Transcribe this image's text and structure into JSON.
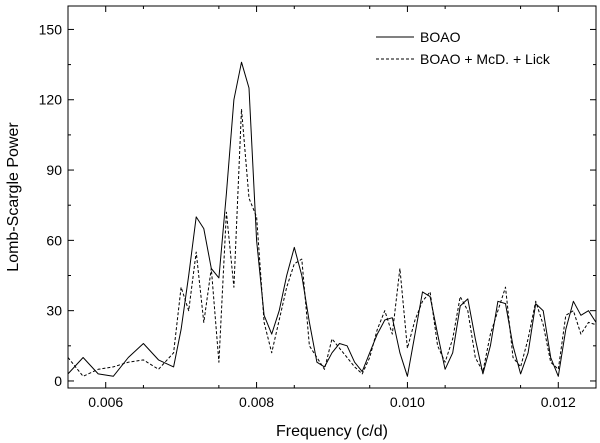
{
  "chart_data": {
    "type": "line",
    "xlabel": "Frequency (c/d)",
    "ylabel": "Lomb-Scargle Power",
    "xlim": [
      0.0055,
      0.0125
    ],
    "ylim": [
      -3,
      160
    ],
    "x_ticks": [
      0.006,
      0.008,
      0.01,
      0.012
    ],
    "x_tick_labels": [
      "0.006",
      "0.008",
      "0.010",
      "0.012"
    ],
    "y_ticks": [
      0,
      30,
      60,
      90,
      120,
      150
    ],
    "y_tick_labels": [
      "0",
      "30",
      "60",
      "90",
      "120",
      "150"
    ],
    "grid": false,
    "legend_position": "top-right",
    "series": [
      {
        "name": "BOAO",
        "style": "solid",
        "color": "#000000",
        "x": [
          0.0055,
          0.0057,
          0.0059,
          0.0061,
          0.0063,
          0.0065,
          0.0067,
          0.0069,
          0.007,
          0.0071,
          0.0072,
          0.0073,
          0.0074,
          0.0075,
          0.0076,
          0.0077,
          0.0078,
          0.0079,
          0.008,
          0.0081,
          0.0082,
          0.0083,
          0.0084,
          0.0085,
          0.0086,
          0.0087,
          0.0088,
          0.0089,
          0.009,
          0.0091,
          0.0092,
          0.0093,
          0.0094,
          0.0095,
          0.0096,
          0.0097,
          0.0098,
          0.0099,
          0.01,
          0.0101,
          0.0102,
          0.0103,
          0.0104,
          0.0105,
          0.0106,
          0.0107,
          0.0108,
          0.0109,
          0.011,
          0.0111,
          0.0112,
          0.0113,
          0.0114,
          0.0115,
          0.0116,
          0.0117,
          0.0118,
          0.0119,
          0.012,
          0.0121,
          0.0122,
          0.0123,
          0.0124,
          0.0125
        ],
        "values": [
          3,
          10,
          3,
          2,
          10,
          16,
          9,
          6,
          22,
          45,
          70,
          65,
          48,
          44,
          80,
          120,
          136,
          125,
          60,
          28,
          20,
          30,
          45,
          57,
          45,
          25,
          8,
          6,
          12,
          16,
          15,
          8,
          4,
          12,
          20,
          26,
          27,
          12,
          2,
          20,
          38,
          36,
          20,
          5,
          12,
          32,
          35,
          18,
          3,
          15,
          34,
          33,
          15,
          3,
          12,
          33,
          30,
          10,
          2,
          22,
          34,
          28,
          30,
          25
        ]
      },
      {
        "name": "BOAO + McD. + Lick",
        "style": "dashed",
        "color": "#000000",
        "x": [
          0.0055,
          0.0057,
          0.0059,
          0.0061,
          0.0063,
          0.0065,
          0.0067,
          0.0069,
          0.007,
          0.0071,
          0.0072,
          0.0073,
          0.0074,
          0.0075,
          0.0076,
          0.0077,
          0.0078,
          0.0079,
          0.008,
          0.0081,
          0.0082,
          0.0083,
          0.0084,
          0.0085,
          0.0086,
          0.0087,
          0.0088,
          0.0089,
          0.009,
          0.0091,
          0.0092,
          0.0093,
          0.0094,
          0.0095,
          0.0096,
          0.0097,
          0.0098,
          0.0099,
          0.01,
          0.0101,
          0.0102,
          0.0103,
          0.0104,
          0.0105,
          0.0106,
          0.0107,
          0.0108,
          0.0109,
          0.011,
          0.0111,
          0.0112,
          0.0113,
          0.0114,
          0.0115,
          0.0116,
          0.0117,
          0.0118,
          0.0119,
          0.012,
          0.0121,
          0.0122,
          0.0123,
          0.0124,
          0.0125
        ],
        "values": [
          10,
          2,
          5,
          6,
          8,
          9,
          5,
          12,
          40,
          30,
          55,
          25,
          48,
          8,
          72,
          40,
          116,
          78,
          70,
          25,
          12,
          26,
          40,
          50,
          52,
          15,
          10,
          5,
          18,
          14,
          10,
          6,
          3,
          10,
          22,
          30,
          20,
          48,
          14,
          26,
          34,
          38,
          15,
          8,
          18,
          36,
          30,
          10,
          4,
          20,
          30,
          40,
          10,
          6,
          18,
          34,
          24,
          8,
          5,
          28,
          30,
          20,
          25,
          24
        ]
      }
    ]
  }
}
